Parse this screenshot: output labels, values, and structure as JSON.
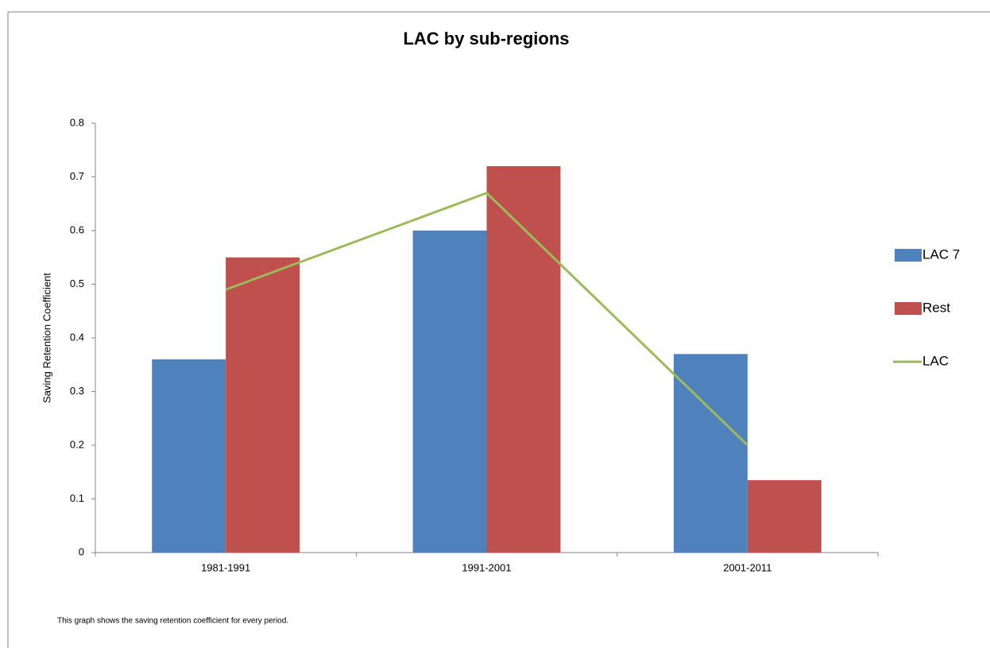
{
  "chart_data": {
    "type": "bar",
    "title": "LAC by sub-regions",
    "ylabel": "Saving Retention Coefficient",
    "note": "This graph shows the saving retention coefficient for every period.",
    "categories": [
      "1981-1991",
      "1991-2001",
      "2001-2011"
    ],
    "series": [
      {
        "name": "LAC 7",
        "color": "#4f81bd",
        "values": [
          0.36,
          0.6,
          0.37
        ]
      },
      {
        "name": "Rest",
        "color": "#c0504d",
        "values": [
          0.55,
          0.72,
          0.135
        ]
      },
      {
        "name": "LAC",
        "color": "#9bbb59",
        "type": "line",
        "values": [
          0.49,
          0.67,
          0.2
        ]
      }
    ],
    "ylim": [
      0,
      0.8
    ],
    "yticks": [
      0,
      0.1,
      0.2,
      0.3,
      0.4,
      0.5,
      0.6,
      0.7,
      0.8
    ],
    "grid": false,
    "legend": "right"
  }
}
